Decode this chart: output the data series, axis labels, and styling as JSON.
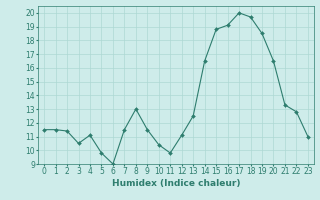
{
  "x": [
    0,
    1,
    2,
    3,
    4,
    5,
    6,
    7,
    8,
    9,
    10,
    11,
    12,
    13,
    14,
    15,
    16,
    17,
    18,
    19,
    20,
    21,
    22,
    23
  ],
  "y": [
    11.5,
    11.5,
    11.4,
    10.5,
    11.1,
    9.8,
    9.0,
    11.5,
    13.0,
    11.5,
    10.4,
    9.8,
    11.1,
    12.5,
    16.5,
    18.8,
    19.1,
    20.0,
    19.7,
    18.5,
    16.5,
    13.3,
    12.8,
    11.0
  ],
  "line_color": "#2e7d6e",
  "marker": "D",
  "marker_size": 2,
  "bg_color": "#ceecea",
  "grid_color": "#aed8d4",
  "xlabel": "Humidex (Indice chaleur)",
  "ylim": [
    9,
    20.5
  ],
  "xlim": [
    -0.5,
    23.5
  ],
  "yticks": [
    9,
    10,
    11,
    12,
    13,
    14,
    15,
    16,
    17,
    18,
    19,
    20
  ],
  "xticks": [
    0,
    1,
    2,
    3,
    4,
    5,
    6,
    7,
    8,
    9,
    10,
    11,
    12,
    13,
    14,
    15,
    16,
    17,
    18,
    19,
    20,
    21,
    22,
    23
  ],
  "xlabel_fontsize": 6.5,
  "tick_fontsize": 5.5
}
